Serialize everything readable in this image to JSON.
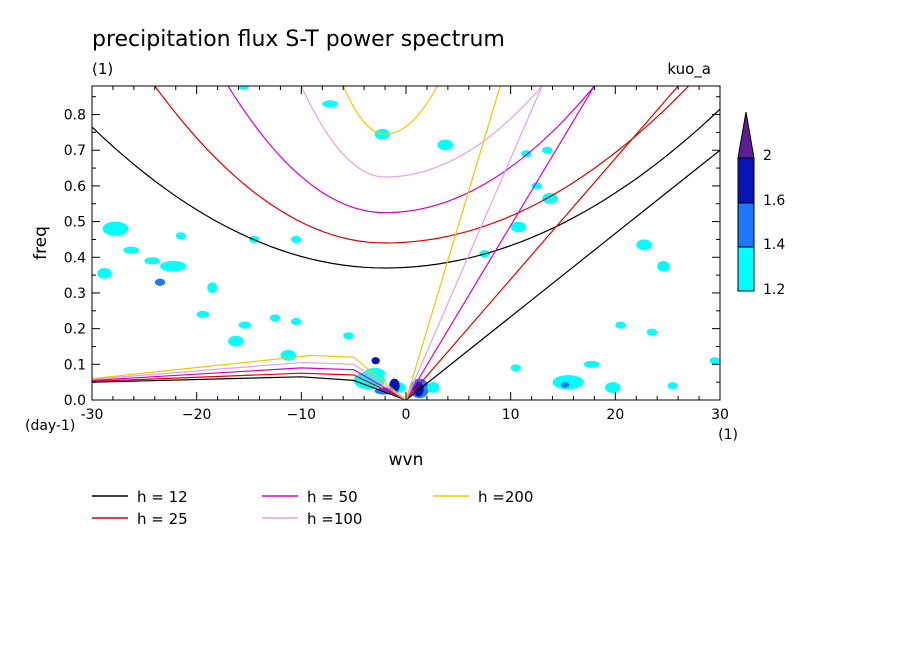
{
  "chart_data": {
    "type": "heatmap",
    "title": "precipitation flux S-T power spectrum",
    "subtitle_left": "(1)",
    "subtitle_right": "kuo_a",
    "xlabel": "wvn",
    "ylabel": "freq",
    "x_unit_label": "(1)",
    "y_unit_label": "(day-1)",
    "xlim": [
      -30,
      30
    ],
    "ylim": [
      0,
      0.88
    ],
    "x_ticks": [
      -30,
      -20,
      -10,
      0,
      10,
      20,
      30
    ],
    "x_tick_labels": [
      "-30",
      "−20",
      "−10",
      "0",
      "10",
      "20",
      "30"
    ],
    "y_ticks": [
      0,
      0.1,
      0.2,
      0.3,
      0.4,
      0.5,
      0.6,
      0.7,
      0.8
    ],
    "y_tick_labels": [
      "0.0",
      "0.1",
      "0.2",
      "0.3",
      "0.4",
      "0.5",
      "0.6",
      "0.7",
      "0.8"
    ],
    "colorbar": {
      "levels": [
        1.2,
        1.4,
        1.6,
        2
      ],
      "level_labels": [
        "1.2",
        "1.4",
        "1.6",
        "2"
      ],
      "colors": [
        "#00ffff",
        "#1e78ff",
        "#0a14b4",
        "#5a1e96"
      ]
    },
    "dispersion_legend": [
      {
        "label": "h = 12",
        "color": "#000000"
      },
      {
        "label": "h = 25",
        "color": "#e00000"
      },
      {
        "label": "h = 50",
        "color": "#d400c8"
      },
      {
        "label": "h =100",
        "color": "#e6a0e6"
      },
      {
        "label": "h =200",
        "color": "#f0c800"
      }
    ],
    "dispersion_curves": [
      {
        "h": 12,
        "color": "#000000",
        "kelvin": [
          [
            0,
            0
          ],
          [
            30,
            0.7
          ]
        ],
        "ig_min": [
          -2,
          0.37
        ],
        "ig_ends": [
          [
            -30,
            0.765
          ],
          [
            30,
            0.815
          ]
        ],
        "mrg": [
          [
            -30,
            0.05
          ],
          [
            -10,
            0.065
          ],
          [
            -5,
            0.055
          ],
          [
            0,
            0
          ]
        ]
      },
      {
        "h": 25,
        "color": "#e00000",
        "kelvin": [
          [
            0,
            0
          ],
          [
            26,
            0.88
          ]
        ],
        "ig_min": [
          -2,
          0.44
        ],
        "ig_ends": [
          [
            -24,
            0.88
          ],
          [
            27,
            0.88
          ]
        ],
        "mrg": [
          [
            -30,
            0.052
          ],
          [
            -10,
            0.075
          ],
          [
            -5,
            0.07
          ],
          [
            0,
            0
          ]
        ]
      },
      {
        "h": 50,
        "color": "#d400c8",
        "kelvin": [
          [
            0,
            0
          ],
          [
            18,
            0.88
          ]
        ],
        "ig_min": [
          -2,
          0.525
        ],
        "ig_ends": [
          [
            -17,
            0.88
          ],
          [
            18,
            0.88
          ]
        ],
        "mrg": [
          [
            -30,
            0.055
          ],
          [
            -10,
            0.09
          ],
          [
            -5,
            0.085
          ],
          [
            0,
            0
          ]
        ]
      },
      {
        "h": 100,
        "color": "#e6a0e6",
        "kelvin": [
          [
            0,
            0
          ],
          [
            13,
            0.88
          ]
        ],
        "ig_min": [
          -2,
          0.625
        ],
        "ig_ends": [
          [
            -10,
            0.88
          ],
          [
            13,
            0.88
          ]
        ],
        "mrg": [
          [
            -30,
            0.058
          ],
          [
            -10,
            0.105
          ],
          [
            -5,
            0.1
          ],
          [
            0,
            0
          ]
        ]
      },
      {
        "h": 200,
        "color": "#f0c800",
        "kelvin": [
          [
            0,
            0
          ],
          [
            9,
            0.88
          ]
        ],
        "ig_min": [
          -2,
          0.745
        ],
        "ig_ends": [
          [
            -6,
            0.88
          ],
          [
            3,
            0.88
          ]
        ],
        "mrg": [
          [
            -30,
            0.06
          ],
          [
            -9,
            0.125
          ],
          [
            -5,
            0.12
          ],
          [
            0,
            0
          ]
        ]
      }
    ],
    "spectrum_patches": [
      {
        "x": -29.5,
        "y": 0.34,
        "w": 1.4,
        "h": 0.03,
        "level": 1
      },
      {
        "x": -29,
        "y": 0.46,
        "w": 2.5,
        "h": 0.04,
        "level": 1
      },
      {
        "x": -27,
        "y": 0.41,
        "w": 1.5,
        "h": 0.02,
        "level": 1
      },
      {
        "x": -25,
        "y": 0.38,
        "w": 1.5,
        "h": 0.02,
        "level": 1
      },
      {
        "x": -23.5,
        "y": 0.36,
        "w": 2.5,
        "h": 0.03,
        "level": 1
      },
      {
        "x": -24,
        "y": 0.32,
        "w": 1,
        "h": 0.02,
        "level": 2
      },
      {
        "x": -19,
        "y": 0.3,
        "w": 1,
        "h": 0.03,
        "level": 1
      },
      {
        "x": -22,
        "y": 0.45,
        "w": 1,
        "h": 0.02,
        "level": 1
      },
      {
        "x": -15,
        "y": 0.44,
        "w": 1,
        "h": 0.02,
        "level": 1
      },
      {
        "x": -11,
        "y": 0.44,
        "w": 1,
        "h": 0.02,
        "level": 1
      },
      {
        "x": -20,
        "y": 0.23,
        "w": 1.2,
        "h": 0.02,
        "level": 1
      },
      {
        "x": -16,
        "y": 0.2,
        "w": 1.2,
        "h": 0.02,
        "level": 1
      },
      {
        "x": -13,
        "y": 0.22,
        "w": 1,
        "h": 0.02,
        "level": 1
      },
      {
        "x": -11,
        "y": 0.21,
        "w": 1,
        "h": 0.02,
        "level": 1
      },
      {
        "x": -17,
        "y": 0.15,
        "w": 1.5,
        "h": 0.03,
        "level": 1
      },
      {
        "x": -12,
        "y": 0.11,
        "w": 1.5,
        "h": 0.03,
        "level": 1
      },
      {
        "x": -6,
        "y": 0.17,
        "w": 1,
        "h": 0.02,
        "level": 1
      },
      {
        "x": -8,
        "y": 0.82,
        "w": 1.5,
        "h": 0.02,
        "level": 1
      },
      {
        "x": -16,
        "y": 0.87,
        "w": 1,
        "h": 0.01,
        "level": 1
      },
      {
        "x": -3,
        "y": 0.73,
        "w": 1.5,
        "h": 0.03,
        "level": 1
      },
      {
        "x": 3,
        "y": 0.7,
        "w": 1.5,
        "h": 0.03,
        "level": 1
      },
      {
        "x": 11,
        "y": 0.68,
        "w": 1,
        "h": 0.02,
        "level": 1
      },
      {
        "x": 13,
        "y": 0.69,
        "w": 1,
        "h": 0.02,
        "level": 1
      },
      {
        "x": 12,
        "y": 0.59,
        "w": 1,
        "h": 0.02,
        "level": 1
      },
      {
        "x": 10,
        "y": 0.47,
        "w": 1.5,
        "h": 0.03,
        "level": 1
      },
      {
        "x": 13,
        "y": 0.55,
        "w": 1.5,
        "h": 0.03,
        "level": 1
      },
      {
        "x": 7,
        "y": 0.4,
        "w": 1,
        "h": 0.02,
        "level": 1
      },
      {
        "x": 22,
        "y": 0.42,
        "w": 1.5,
        "h": 0.03,
        "level": 1
      },
      {
        "x": 24,
        "y": 0.36,
        "w": 1.2,
        "h": 0.03,
        "level": 1
      },
      {
        "x": 20,
        "y": 0.2,
        "w": 1,
        "h": 0.02,
        "level": 1
      },
      {
        "x": 23,
        "y": 0.18,
        "w": 1,
        "h": 0.02,
        "level": 1
      },
      {
        "x": 17,
        "y": 0.09,
        "w": 1.5,
        "h": 0.02,
        "level": 1
      },
      {
        "x": 14,
        "y": 0.03,
        "w": 3,
        "h": 0.04,
        "level": 1
      },
      {
        "x": 19,
        "y": 0.02,
        "w": 1.5,
        "h": 0.03,
        "level": 1
      },
      {
        "x": 25,
        "y": 0.03,
        "w": 1,
        "h": 0.02,
        "level": 1
      },
      {
        "x": 29,
        "y": 0.1,
        "w": 1,
        "h": 0.02,
        "level": 1
      },
      {
        "x": 14.8,
        "y": 0.035,
        "w": 0.8,
        "h": 0.015,
        "level": 2
      },
      {
        "x": -5,
        "y": 0.03,
        "w": 3,
        "h": 0.05,
        "level": 1
      },
      {
        "x": -4,
        "y": 0.06,
        "w": 2,
        "h": 0.03,
        "level": 1
      },
      {
        "x": -1.5,
        "y": 0.02,
        "w": 1.5,
        "h": 0.03,
        "level": 1
      },
      {
        "x": -3,
        "y": 0.015,
        "w": 2,
        "h": 0.02,
        "level": 2
      },
      {
        "x": -1.6,
        "y": 0.02,
        "w": 1,
        "h": 0.04,
        "level": 3
      },
      {
        "x": -3.3,
        "y": 0.1,
        "w": 0.8,
        "h": 0.02,
        "level": 3
      },
      {
        "x": 0.4,
        "y": 0.005,
        "w": 1.8,
        "h": 0.055,
        "level": 2
      },
      {
        "x": 0.7,
        "y": 0.01,
        "w": 1,
        "h": 0.04,
        "level": 3
      },
      {
        "x": 2,
        "y": 0.02,
        "w": 1.2,
        "h": 0.03,
        "level": 1
      },
      {
        "x": 10,
        "y": 0.08,
        "w": 1,
        "h": 0.02,
        "level": 1
      }
    ]
  }
}
